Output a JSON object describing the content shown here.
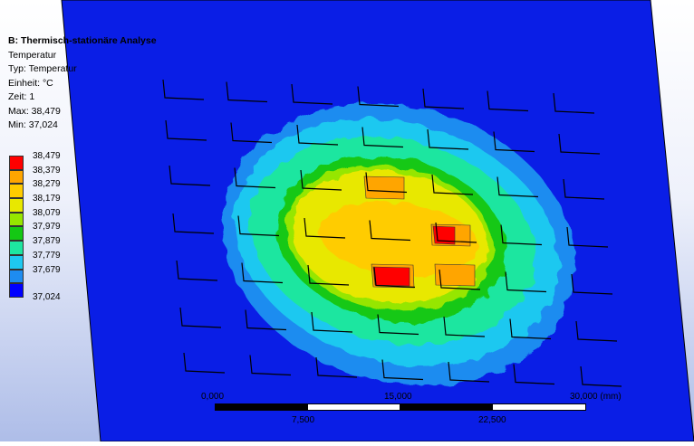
{
  "info": {
    "title": "B: Thermisch-stationäre Analyse",
    "result": "Temperatur",
    "type": "Typ: Temperatur",
    "unit": "Einheit: °C",
    "time": "Zeit: 1",
    "max": "Max: 38,479",
    "min": "Min: 37,024"
  },
  "legend": {
    "entries": [
      {
        "label": "38,479",
        "color": "#ff0000"
      },
      {
        "label": "38,379",
        "color": "#ffa500"
      },
      {
        "label": "38,279",
        "color": "#ffcc00"
      },
      {
        "label": "38,179",
        "color": "#e8e800"
      },
      {
        "label": "38,079",
        "color": "#96e600"
      },
      {
        "label": "37,979",
        "color": "#14c814"
      },
      {
        "label": "37,879",
        "color": "#1ee6a0"
      },
      {
        "label": "37,779",
        "color": "#1ec8f0"
      },
      {
        "label": "37,679",
        "color": "#1e8cf0"
      },
      {
        "label": "37,024",
        "color": "#0000ff"
      }
    ]
  },
  "scale": {
    "tick_0": "0,000",
    "tick_1": "15,000",
    "tick_2": "30,000 (mm)",
    "tick_mid1": "7,500",
    "tick_mid2": "22,500"
  },
  "colors": {
    "plate": "#0a1ee6",
    "background_top": "#ffffff",
    "background_bottom": "#aebde8"
  }
}
